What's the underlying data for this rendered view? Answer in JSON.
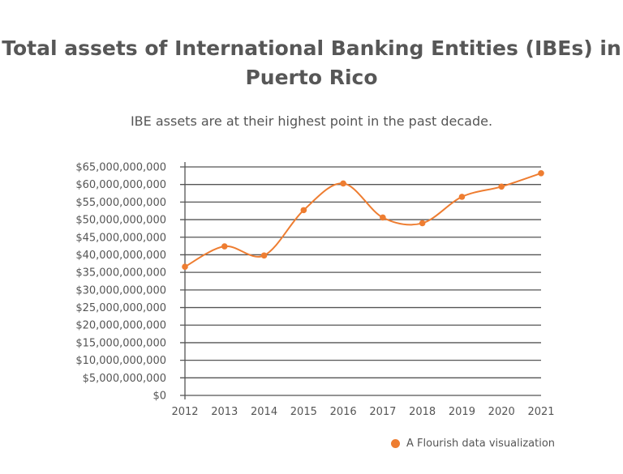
{
  "chart_data": {
    "type": "line",
    "title": "Total assets of International Banking Entities (IBEs) in Puerto Rico",
    "subtitle": "IBE assets are at their highest point in the past decade.",
    "xlabel": "",
    "ylabel": "",
    "x": [
      "2012",
      "2013",
      "2014",
      "2015",
      "2016",
      "2017",
      "2018",
      "2019",
      "2020",
      "2021"
    ],
    "series": [
      {
        "values": [
          36600000000,
          42400000000,
          39800000000,
          52700000000,
          60300000000,
          50600000000,
          49000000000,
          56500000000,
          59400000000,
          63200000000
        ]
      }
    ],
    "ylim": [
      0,
      65000000000
    ],
    "yticks": [
      0,
      5000000000,
      10000000000,
      15000000000,
      20000000000,
      25000000000,
      30000000000,
      35000000000,
      40000000000,
      45000000000,
      50000000000,
      55000000000,
      60000000000,
      65000000000
    ],
    "ytick_labels": [
      "$0",
      "$5,000,000,000",
      "$10,000,000,000",
      "$15,000,000,000",
      "$20,000,000,000",
      "$25,000,000,000",
      "$30,000,000,000",
      "$35,000,000,000",
      "$40,000,000,000",
      "$45,000,000,000",
      "$50,000,000,000",
      "$55,000,000,000",
      "$60,000,000,000",
      "$65,000,000,000"
    ],
    "grid": true,
    "curve": "smooth",
    "line_color": "#ee7d31",
    "grid_color": "#555555"
  },
  "legend": {
    "label": "A Flourish data visualization"
  }
}
